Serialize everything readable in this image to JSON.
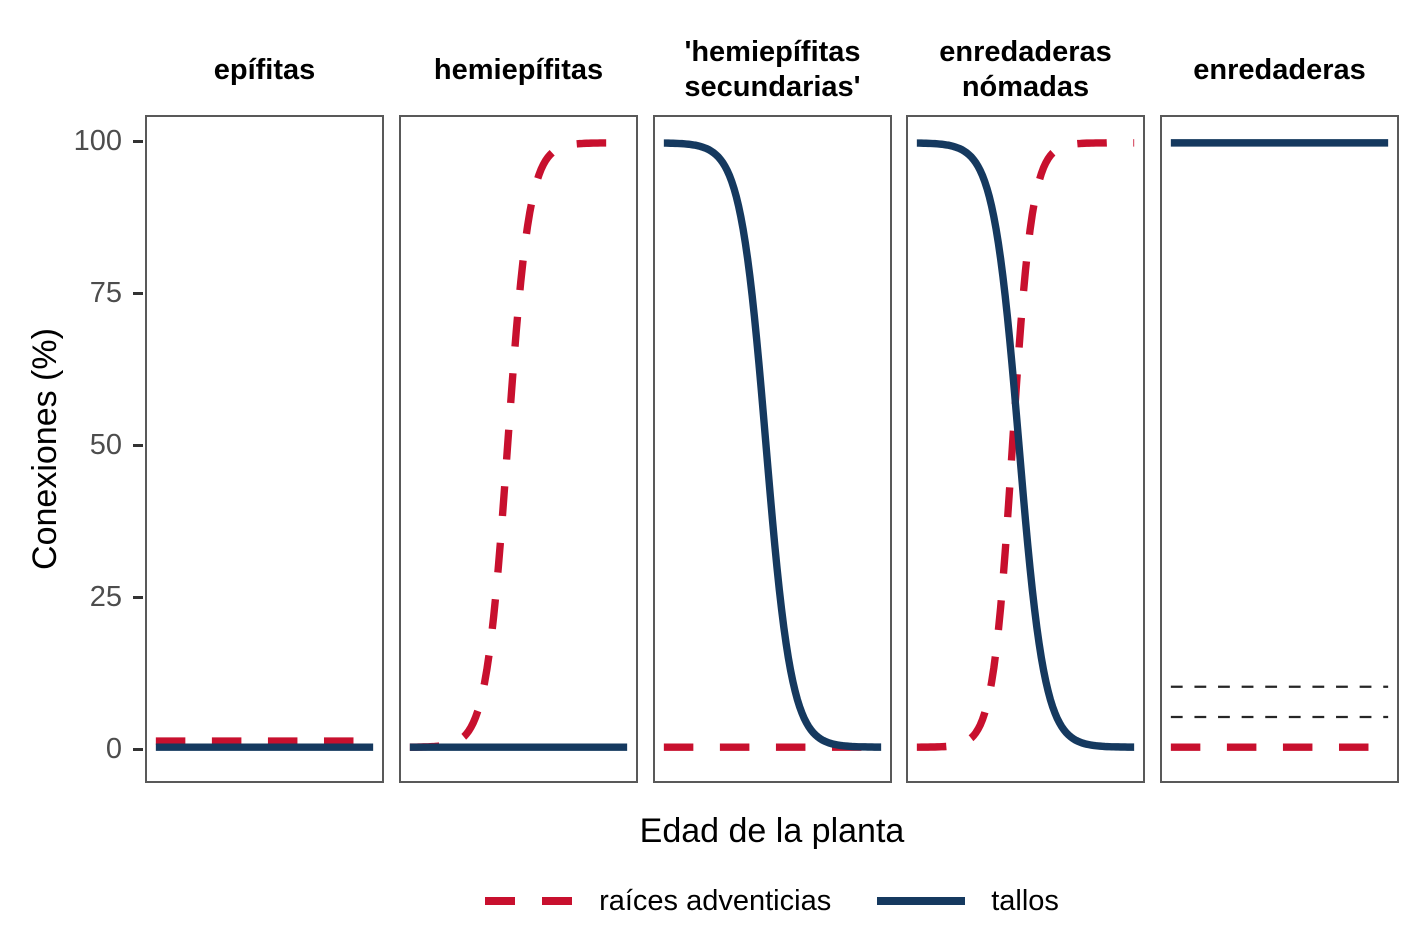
{
  "chart_data": {
    "type": "line",
    "title": "",
    "xlabel": "Edad de la planta",
    "ylabel": "Conexiones (%)",
    "x_axis": {
      "range": [
        0,
        1
      ],
      "ticks": [],
      "note": "no x tick marks or labels shown"
    },
    "y_axis": {
      "range": [
        -6,
        104
      ],
      "ticks": [
        0,
        25,
        50,
        75,
        100
      ]
    },
    "grid": false,
    "legend_position": "bottom",
    "legend": [
      {
        "label": "raíces adventicias",
        "color": "#c8102e",
        "line_style": "dashed"
      },
      {
        "label": "tallos",
        "color": "#15395f",
        "line_style": "solid"
      }
    ],
    "styles": {
      "panel_border_color": "#595959",
      "tick_mark_color": "#333333",
      "tick_label_color": "#4d4d4d",
      "axis_title_color": "#000000",
      "reference_line_color": "#262626"
    },
    "panels": [
      {
        "title": "epífitas",
        "title_lines": [
          "epífitas"
        ],
        "series": [
          {
            "name": "raíces adventicias",
            "color": "#c8102e",
            "line_style": "dashed",
            "curve": {
              "kind": "constant",
              "value": 1
            },
            "points": {
              "x": [
                0,
                1
              ],
              "y": [
                1,
                1
              ]
            }
          },
          {
            "name": "tallos",
            "color": "#15395f",
            "line_style": "solid",
            "curve": {
              "kind": "constant",
              "value": 0
            },
            "points": {
              "x": [
                0,
                1
              ],
              "y": [
                0,
                0
              ]
            }
          }
        ],
        "reference_lines": []
      },
      {
        "title": "hemiepífitas",
        "title_lines": [
          "hemiepífitas"
        ],
        "series": [
          {
            "name": "raíces adventicias",
            "color": "#c8102e",
            "line_style": "dashed",
            "curve": {
              "kind": "logistic",
              "from": 0,
              "to": 100,
              "midpoint": 0.45,
              "steepness": 20
            },
            "points": {
              "x": [
                0,
                0.1,
                0.2,
                0.3,
                0.4,
                0.5,
                0.6,
                0.7,
                0.8,
                0.9,
                1
              ],
              "y": [
                0,
                0.1,
                0.7,
                4.7,
                26.9,
                73.1,
                95.3,
                99.3,
                99.9,
                100,
                100
              ]
            }
          },
          {
            "name": "tallos",
            "color": "#15395f",
            "line_style": "solid",
            "curve": {
              "kind": "constant",
              "value": 0
            },
            "points": {
              "x": [
                0,
                1
              ],
              "y": [
                0,
                0
              ]
            }
          }
        ],
        "reference_lines": []
      },
      {
        "title": "'hemiepífitas secundarias'",
        "title_lines": [
          "'hemiepífitas",
          "secundarias'"
        ],
        "series": [
          {
            "name": "raíces adventicias",
            "color": "#c8102e",
            "line_style": "dashed",
            "curve": {
              "kind": "constant",
              "value": 0
            },
            "points": {
              "x": [
                0,
                1
              ],
              "y": [
                0,
                0
              ]
            }
          },
          {
            "name": "tallos",
            "color": "#15395f",
            "line_style": "solid",
            "curve": {
              "kind": "logistic",
              "from": 100,
              "to": 0,
              "midpoint": 0.47,
              "steepness": 17
            },
            "points": {
              "x": [
                0,
                0.1,
                0.2,
                0.3,
                0.4,
                0.5,
                0.6,
                0.7,
                0.8,
                0.9,
                1
              ],
              "y": [
                100,
                99.8,
                99,
                94.7,
                76.7,
                37.5,
                9.9,
                2,
                0.4,
                0.1,
                0
              ]
            }
          }
        ],
        "reference_lines": []
      },
      {
        "title": "enredaderas nómadas",
        "title_lines": [
          "enredaderas",
          "nómadas"
        ],
        "series": [
          {
            "name": "raíces adventicias",
            "color": "#c8102e",
            "line_style": "dashed",
            "curve": {
              "kind": "logistic",
              "from": 0,
              "to": 100,
              "midpoint": 0.44,
              "steepness": 22
            },
            "points": {
              "x": [
                0,
                0.1,
                0.2,
                0.3,
                0.4,
                0.5,
                0.6,
                0.7,
                0.8,
                0.9,
                1
              ],
              "y": [
                0,
                0.1,
                0.5,
                4.4,
                29.3,
                78.9,
                97.1,
                99.7,
                100,
                100,
                100
              ]
            }
          },
          {
            "name": "tallos",
            "color": "#15395f",
            "line_style": "solid",
            "curve": {
              "kind": "logistic",
              "from": 100,
              "to": 0,
              "midpoint": 0.47,
              "steepness": 17
            },
            "points": {
              "x": [
                0,
                0.1,
                0.2,
                0.3,
                0.4,
                0.5,
                0.6,
                0.7,
                0.8,
                0.9,
                1
              ],
              "y": [
                100,
                99.8,
                99,
                94.7,
                76.7,
                37.5,
                9.9,
                2,
                0.4,
                0.1,
                0
              ]
            }
          }
        ],
        "reference_lines": []
      },
      {
        "title": "enredaderas",
        "title_lines": [
          "enredaderas"
        ],
        "series": [
          {
            "name": "raíces adventicias",
            "color": "#c8102e",
            "line_style": "dashed",
            "curve": {
              "kind": "constant",
              "value": 0
            },
            "points": {
              "x": [
                0,
                1
              ],
              "y": [
                0,
                0
              ]
            }
          },
          {
            "name": "tallos",
            "color": "#15395f",
            "line_style": "solid",
            "curve": {
              "kind": "constant",
              "value": 100
            },
            "points": {
              "x": [
                0,
                1
              ],
              "y": [
                100,
                100
              ]
            }
          }
        ],
        "reference_lines": [
          {
            "value": 10,
            "style": "thin-dashed"
          },
          {
            "value": 5,
            "style": "thin-dashed"
          }
        ]
      }
    ]
  }
}
